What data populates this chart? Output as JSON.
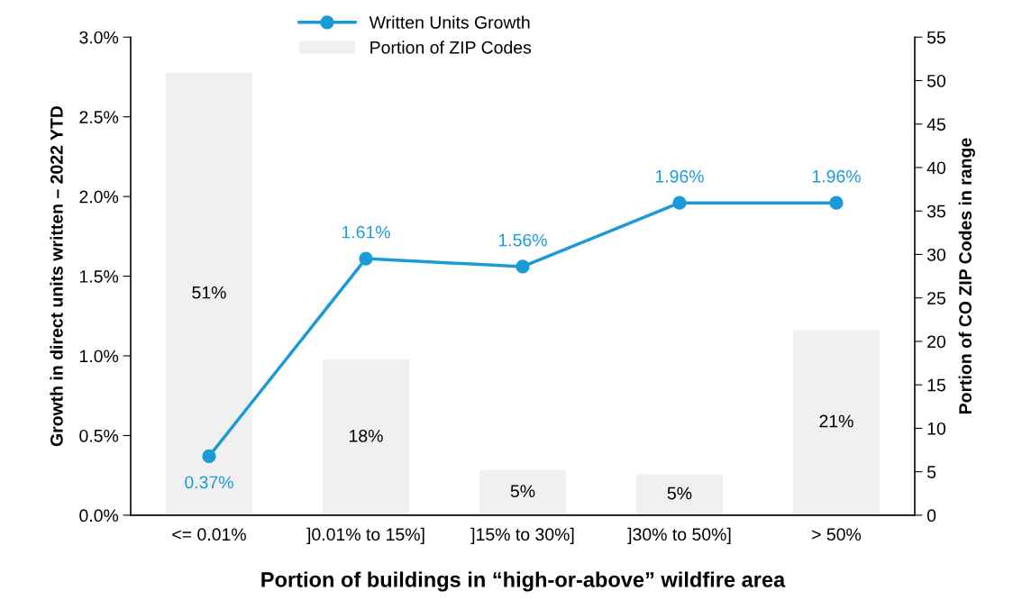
{
  "chart_data": {
    "type": "bar",
    "categories": [
      "<= 0.01%",
      "]0.01% to 15%]",
      "]15% to 30%]",
      "]30% to 50%]",
      "> 50%"
    ],
    "xlabel": "Portion of buildings in “high-or-above” wildfire area",
    "ylabel": "Growth in direct units written – 2022 YTD",
    "y2label": "Portion of CO ZIP Codes in range",
    "series": [
      {
        "name": "Written Units Growth",
        "type": "line",
        "color": "#1a9bd7",
        "marker": "circle",
        "values": [
          0.37,
          1.61,
          1.56,
          1.96,
          1.96
        ],
        "value_labels": [
          "0.37%",
          "1.61%",
          "1.56%",
          "1.96%",
          "1.96%"
        ]
      },
      {
        "name": "Portion of ZIP Codes",
        "axis": "y2",
        "color": "#f0f0f0",
        "values": [
          50.9,
          17.9,
          5.2,
          4.7,
          21.3
        ],
        "value_labels": [
          "51%",
          "18%",
          "5%",
          "5%",
          "21%"
        ]
      }
    ],
    "ylim": [
      0,
      3
    ],
    "yticks": [
      {
        "value": 0,
        "label": "0.0%"
      },
      {
        "value": 0.5,
        "label": "0.5%"
      },
      {
        "value": 1,
        "label": "1.0%"
      },
      {
        "value": 1.5,
        "label": "1.5%"
      },
      {
        "value": 2,
        "label": "2.0%"
      },
      {
        "value": 2.5,
        "label": "2.5%"
      },
      {
        "value": 3,
        "label": "3.0%"
      }
    ],
    "y2lim": [
      0,
      55
    ],
    "y2ticks": [
      0,
      5,
      10,
      15,
      20,
      25,
      30,
      35,
      40,
      45,
      50,
      55
    ],
    "legend": "top",
    "grid": false
  }
}
